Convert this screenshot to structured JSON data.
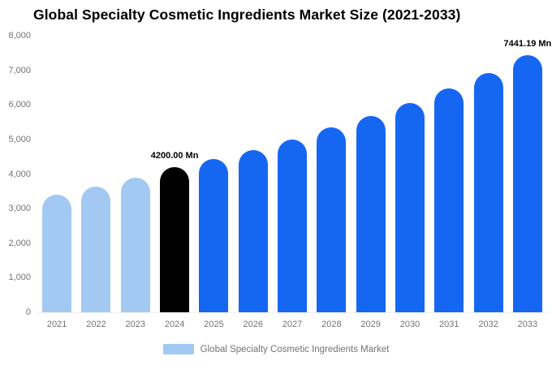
{
  "title": "Global Specialty Cosmetic Ingredients Market Size (2021-2033)",
  "legend": {
    "label": "Global Specialty Cosmetic Ingredients Market",
    "swatch_color": "#a2c9f2"
  },
  "chart_data": {
    "type": "bar",
    "title": "Global Specialty Cosmetic Ingredients Market Size (2021-2033)",
    "xlabel": "",
    "ylabel": "",
    "unit": "Mn",
    "categories": [
      "2021",
      "2022",
      "2023",
      "2024",
      "2025",
      "2026",
      "2027",
      "2028",
      "2029",
      "2030",
      "2031",
      "2032",
      "2033"
    ],
    "values": [
      3400,
      3630,
      3890,
      4200,
      4430,
      4700,
      5000,
      5350,
      5680,
      6050,
      6480,
      6920,
      7441.19
    ],
    "segments": [
      "historical",
      "historical",
      "historical",
      "base_year",
      "forecast",
      "forecast",
      "forecast",
      "forecast",
      "forecast",
      "forecast",
      "forecast",
      "forecast",
      "forecast"
    ],
    "colors": {
      "historical": "#a2c9f2",
      "base_year": "#000000",
      "forecast": "#1567f2"
    },
    "ylim": [
      0,
      8000
    ],
    "ytick_interval": 1000,
    "ytick_labels": [
      "0",
      "1,000",
      "2,000",
      "3,000",
      "4,000",
      "5,000",
      "6,000",
      "7,000",
      "8,000"
    ],
    "grid": false,
    "legend_position": "bottom",
    "annotations": [
      {
        "category": "2024",
        "text": "4200.00 Mn"
      },
      {
        "category": "2033",
        "text": "7441.19 Mn"
      }
    ]
  }
}
